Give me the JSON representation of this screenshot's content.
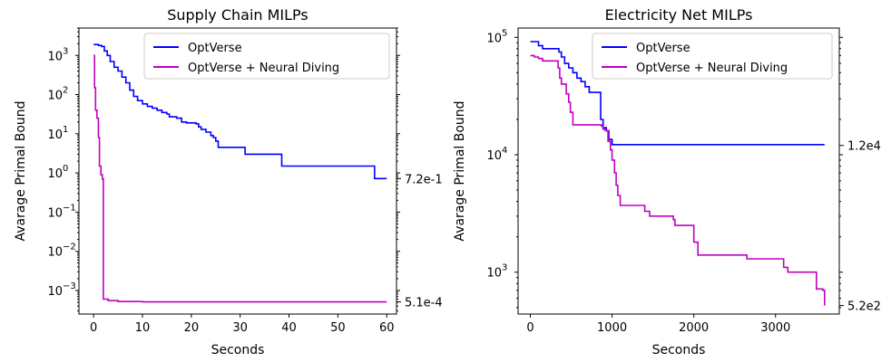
{
  "chart_data": [
    {
      "type": "line",
      "title": "Supply Chain MILPs",
      "xlabel": "Seconds",
      "ylabel": "Avarage Primal Bound",
      "xlim": [
        -3,
        62
      ],
      "ylim": [
        0.00025,
        5000
      ],
      "yscale": "log",
      "xticks": [
        0,
        10,
        20,
        30,
        40,
        50,
        60
      ],
      "yticks": [
        0.001,
        0.01,
        0.1,
        1,
        10,
        100,
        1000
      ],
      "ytick_labels": [
        [
          "10",
          "−3"
        ],
        [
          "10",
          "−2"
        ],
        [
          "10",
          "−1"
        ],
        [
          "10",
          "0"
        ],
        [
          "10",
          "1"
        ],
        [
          "10",
          "2"
        ],
        [
          "10",
          "3"
        ]
      ],
      "right_annotations": [
        {
          "value": 0.72,
          "label": "7.2e-1"
        },
        {
          "value": 0.00051,
          "label": "5.1e-4"
        }
      ],
      "legend": "top-right",
      "grid": false,
      "series": [
        {
          "name": "OptVerse",
          "color": "#0000ff",
          "step": true,
          "points": [
            [
              0,
              1900
            ],
            [
              1,
              1800
            ],
            [
              1.6,
              1700
            ],
            [
              2.2,
              1300
            ],
            [
              2.8,
              1000
            ],
            [
              3.4,
              700
            ],
            [
              4.2,
              500
            ],
            [
              5,
              400
            ],
            [
              5.8,
              280
            ],
            [
              6.6,
              200
            ],
            [
              7.4,
              130
            ],
            [
              8.2,
              90
            ],
            [
              9,
              70
            ],
            [
              10,
              58
            ],
            [
              11,
              50
            ],
            [
              12,
              45
            ],
            [
              13,
              40
            ],
            [
              14,
              35
            ],
            [
              15,
              32
            ],
            [
              15.5,
              27
            ],
            [
              17,
              25
            ],
            [
              18,
              20
            ],
            [
              19,
              19
            ],
            [
              21,
              18
            ],
            [
              21.5,
              15
            ],
            [
              22,
              13
            ],
            [
              23,
              11
            ],
            [
              24,
              9
            ],
            [
              24.5,
              8
            ],
            [
              25,
              6.5
            ],
            [
              25.5,
              4.5
            ],
            [
              31,
              3
            ],
            [
              38.5,
              1.5
            ],
            [
              57.5,
              0.72
            ],
            [
              60,
              0.72
            ]
          ]
        },
        {
          "name": "OptVerse + Neural Diving",
          "color": "#c000c0",
          "step": true,
          "points": [
            [
              0,
              1000
            ],
            [
              0.2,
              150
            ],
            [
              0.4,
              40
            ],
            [
              0.7,
              25
            ],
            [
              1,
              8
            ],
            [
              1.2,
              1.5
            ],
            [
              1.5,
              0.9
            ],
            [
              1.8,
              0.7
            ],
            [
              2,
              0.0006
            ],
            [
              3,
              0.00055
            ],
            [
              5,
              0.00052
            ],
            [
              10,
              0.00051
            ],
            [
              60,
              0.00051
            ]
          ]
        }
      ]
    },
    {
      "type": "line",
      "title": "Electricity Net MILPs",
      "xlabel": "Seconds",
      "ylabel": "Avarage Primal Bound",
      "xlim": [
        -150,
        3780
      ],
      "ylim": [
        440,
        120000
      ],
      "yscale": "log",
      "xticks": [
        0,
        1000,
        2000,
        3000
      ],
      "yticks": [
        1000,
        10000,
        100000
      ],
      "ytick_labels": [
        [
          "10",
          "3"
        ],
        [
          "10",
          "4"
        ],
        [
          "10",
          "5"
        ]
      ],
      "right_annotations": [
        {
          "value": 12000,
          "label": "1.2e4"
        },
        {
          "value": 520,
          "label": "5.2e2"
        }
      ],
      "legend": "top-right",
      "grid": false,
      "series": [
        {
          "name": "OptVerse",
          "color": "#0000ff",
          "step": true,
          "points": [
            [
              0,
              92000
            ],
            [
              60,
              92000
            ],
            [
              100,
              85000
            ],
            [
              150,
              80000
            ],
            [
              350,
              75000
            ],
            [
              380,
              68000
            ],
            [
              420,
              60000
            ],
            [
              470,
              55000
            ],
            [
              520,
              50000
            ],
            [
              570,
              45000
            ],
            [
              620,
              42000
            ],
            [
              670,
              38000
            ],
            [
              720,
              34000
            ],
            [
              860,
              20000
            ],
            [
              890,
              17000
            ],
            [
              930,
              16000
            ],
            [
              960,
              13500
            ],
            [
              1000,
              12200
            ],
            [
              3600,
              12200
            ]
          ]
        },
        {
          "name": "OptVerse + Neural Diving",
          "color": "#c000c0",
          "step": true,
          "points": [
            [
              0,
              70000
            ],
            [
              50,
              68000
            ],
            [
              100,
              66000
            ],
            [
              150,
              63000
            ],
            [
              340,
              55000
            ],
            [
              360,
              45000
            ],
            [
              380,
              40000
            ],
            [
              440,
              33000
            ],
            [
              470,
              28000
            ],
            [
              490,
              23000
            ],
            [
              520,
              18000
            ],
            [
              870,
              17500
            ],
            [
              890,
              16500
            ],
            [
              920,
              16000
            ],
            [
              950,
              13000
            ],
            [
              980,
              11000
            ],
            [
              1000,
              9000
            ],
            [
              1030,
              7000
            ],
            [
              1050,
              5500
            ],
            [
              1070,
              4500
            ],
            [
              1100,
              3700
            ],
            [
              1400,
              3300
            ],
            [
              1460,
              3000
            ],
            [
              1750,
              2800
            ],
            [
              1770,
              2500
            ],
            [
              2000,
              1800
            ],
            [
              2050,
              1400
            ],
            [
              2650,
              1300
            ],
            [
              3100,
              1100
            ],
            [
              3150,
              1000
            ],
            [
              3500,
              720
            ],
            [
              3580,
              700
            ],
            [
              3600,
              520
            ]
          ]
        }
      ]
    }
  ]
}
